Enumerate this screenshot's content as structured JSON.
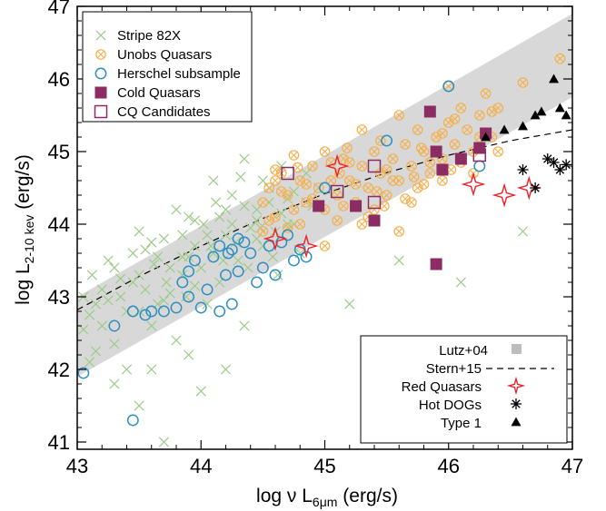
{
  "chart_data": {
    "type": "scatter",
    "title": "",
    "xlabel": {
      "prefix": "log ν L",
      "sub": "6μm",
      "suffix": " (erg/s)"
    },
    "ylabel": {
      "prefix": "log L",
      "sub": "2-10 kev",
      "suffix": " (erg/s)"
    },
    "xlim": [
      43,
      47
    ],
    "ylim": [
      40.9,
      47
    ],
    "xticks": [
      "43",
      "44",
      "45",
      "46",
      "47"
    ],
    "yticks": [
      "41",
      "42",
      "43",
      "44",
      "45",
      "46",
      "47"
    ],
    "xtick_values": [
      43,
      44,
      45,
      46,
      47
    ],
    "ytick_values": [
      41,
      42,
      43,
      44,
      45,
      46,
      47
    ],
    "grid": false,
    "colors": {
      "stripe82x": "#9ecb8a",
      "unobs": "#f5b04d",
      "herschel": "#2e8fc0",
      "cold": "#8b2c63",
      "red": "#e8232b",
      "band": "#d8d8d8",
      "black": "#000000"
    },
    "legend_top_left": [
      {
        "label": "Stripe 82X",
        "marker": "x",
        "color": "#9ecb8a"
      },
      {
        "label": "Unobs Quasars",
        "marker": "circle-x",
        "color": "#f5b04d"
      },
      {
        "label": "Herschel subsample",
        "marker": "circle",
        "color": "#2e8fc0"
      },
      {
        "label": "Cold Quasars",
        "marker": "square-filled",
        "color": "#8b2c63"
      },
      {
        "label": "CQ Candidates",
        "marker": "square-open",
        "color": "#8b2c63"
      }
    ],
    "legend_bottom_right": [
      {
        "label": "Lutz+04",
        "marker": "square-filled",
        "color": "#bdbdbd"
      },
      {
        "label": "Stern+15",
        "marker": "dashed-line",
        "color": "#000000"
      },
      {
        "label": "Red Quasars",
        "marker": "star4",
        "color": "#e8232b"
      },
      {
        "label": "Hot DOGs",
        "marker": "asterisk",
        "color": "#000000"
      },
      {
        "label": "Type 1",
        "marker": "triangle",
        "color": "#000000"
      }
    ],
    "series": [
      {
        "name": "Lutz+04",
        "kind": "band",
        "upper": [
          [
            43,
            43.0
          ],
          [
            47,
            46.9
          ]
        ],
        "lower": [
          [
            43,
            41.9
          ],
          [
            47,
            45.75
          ]
        ]
      },
      {
        "name": "Stern+15",
        "kind": "dashed",
        "x": [
          43,
          43.5,
          44,
          44.5,
          45,
          45.5,
          46,
          46.5,
          47
        ],
        "y": [
          42.82,
          43.28,
          43.7,
          44.08,
          44.42,
          44.71,
          44.95,
          45.15,
          45.3
        ]
      },
      {
        "name": "Stripe 82X",
        "kind": "x",
        "points": [
          [
            43.05,
            42.55
          ],
          [
            43.1,
            42.75
          ],
          [
            43.15,
            42.9
          ],
          [
            43.2,
            43.1
          ],
          [
            43.12,
            43.3
          ],
          [
            43.25,
            43.5
          ],
          [
            43.3,
            42.35
          ],
          [
            43.35,
            43.0
          ],
          [
            43.4,
            42.8
          ],
          [
            43.45,
            43.6
          ],
          [
            43.5,
            43.3
          ],
          [
            43.55,
            43.1
          ],
          [
            43.6,
            42.6
          ],
          [
            43.62,
            43.45
          ],
          [
            43.7,
            43.8
          ],
          [
            43.72,
            43.2
          ],
          [
            43.8,
            42.4
          ],
          [
            43.85,
            43.55
          ],
          [
            43.88,
            43.0
          ],
          [
            43.9,
            44.1
          ],
          [
            43.95,
            43.7
          ],
          [
            44.0,
            43.4
          ],
          [
            44.02,
            44.0
          ],
          [
            44.05,
            42.9
          ],
          [
            44.1,
            43.6
          ],
          [
            44.12,
            44.3
          ],
          [
            44.15,
            43.2
          ],
          [
            44.2,
            43.85
          ],
          [
            44.25,
            44.4
          ],
          [
            44.3,
            43.5
          ],
          [
            44.32,
            44.65
          ],
          [
            44.35,
            42.6
          ],
          [
            44.4,
            43.95
          ],
          [
            44.45,
            44.2
          ],
          [
            44.5,
            43.7
          ],
          [
            44.55,
            44.5
          ],
          [
            44.6,
            43.9
          ],
          [
            44.62,
            43.3
          ],
          [
            44.65,
            44.8
          ],
          [
            44.7,
            44.35
          ],
          [
            44.75,
            44.0
          ],
          [
            44.8,
            43.6
          ],
          [
            44.85,
            44.7
          ],
          [
            44.9,
            44.25
          ],
          [
            44.95,
            44.5
          ],
          [
            43.3,
            41.8
          ],
          [
            43.5,
            41.5
          ],
          [
            43.7,
            41.0
          ],
          [
            43.9,
            42.2
          ],
          [
            44.2,
            42.0
          ],
          [
            44.0,
            41.7
          ],
          [
            43.6,
            42.0
          ],
          [
            43.1,
            42.1
          ],
          [
            43.2,
            42.6
          ],
          [
            43.4,
            42.0
          ],
          [
            43.5,
            43.9
          ],
          [
            43.8,
            44.2
          ],
          [
            44.1,
            44.6
          ],
          [
            44.35,
            44.9
          ],
          [
            44.5,
            44.6
          ],
          [
            43.65,
            42.9
          ],
          [
            43.75,
            43.05
          ],
          [
            43.85,
            43.3
          ],
          [
            43.95,
            43.15
          ],
          [
            44.08,
            43.7
          ],
          [
            44.18,
            43.5
          ],
          [
            44.28,
            43.75
          ],
          [
            44.38,
            43.4
          ],
          [
            44.48,
            43.95
          ],
          [
            44.58,
            43.55
          ],
          [
            43.25,
            42.95
          ],
          [
            43.35,
            43.25
          ],
          [
            43.45,
            43.2
          ],
          [
            43.55,
            43.65
          ],
          [
            43.65,
            43.55
          ],
          [
            43.75,
            43.4
          ],
          [
            43.85,
            43.85
          ],
          [
            43.95,
            44.05
          ],
          [
            44.05,
            43.85
          ],
          [
            44.15,
            44.1
          ],
          [
            44.25,
            44.0
          ],
          [
            44.35,
            44.25
          ],
          [
            44.45,
            44.05
          ],
          [
            44.55,
            44.3
          ],
          [
            44.65,
            44.15
          ],
          [
            44.75,
            44.45
          ],
          [
            44.85,
            44.3
          ],
          [
            45.2,
            42.9
          ],
          [
            45.6,
            43.5
          ],
          [
            46.1,
            43.2
          ],
          [
            46.6,
            43.9
          ],
          [
            43.15,
            42.25
          ],
          [
            43.05,
            43.0
          ],
          [
            43.3,
            43.4
          ],
          [
            43.6,
            43.75
          ],
          [
            43.9,
            43.55
          ],
          [
            44.2,
            44.2
          ],
          [
            44.45,
            43.8
          ],
          [
            44.7,
            44.0
          ],
          [
            43.5,
            42.8
          ],
          [
            43.7,
            42.95
          ]
        ]
      },
      {
        "name": "Unobs Quasars",
        "kind": "circle-x",
        "points": [
          [
            44.5,
            44.3
          ],
          [
            44.55,
            44.5
          ],
          [
            44.6,
            44.1
          ],
          [
            44.65,
            44.7
          ],
          [
            44.7,
            44.4
          ],
          [
            44.75,
            44.2
          ],
          [
            44.8,
            44.6
          ],
          [
            44.85,
            44.3
          ],
          [
            44.9,
            44.8
          ],
          [
            44.95,
            44.5
          ],
          [
            45.0,
            44.2
          ],
          [
            45.05,
            44.6
          ],
          [
            45.1,
            44.4
          ],
          [
            45.15,
            44.9
          ],
          [
            45.2,
            44.6
          ],
          [
            45.25,
            44.3
          ],
          [
            45.3,
            44.8
          ],
          [
            45.35,
            44.5
          ],
          [
            45.4,
            45.0
          ],
          [
            45.45,
            44.7
          ],
          [
            45.5,
            44.4
          ],
          [
            45.55,
            44.9
          ],
          [
            45.6,
            44.6
          ],
          [
            45.65,
            45.1
          ],
          [
            45.7,
            44.8
          ],
          [
            45.75,
            44.5
          ],
          [
            45.8,
            45.0
          ],
          [
            45.85,
            44.7
          ],
          [
            45.9,
            45.2
          ],
          [
            45.95,
            44.9
          ],
          [
            46.0,
            45.4
          ],
          [
            46.05,
            45.1
          ],
          [
            46.1,
            45.6
          ],
          [
            46.15,
            45.3
          ],
          [
            46.2,
            45.0
          ],
          [
            46.25,
            45.5
          ],
          [
            46.3,
            45.8
          ],
          [
            46.35,
            45.2
          ],
          [
            46.4,
            45.6
          ],
          [
            46.6,
            45.95
          ],
          [
            46.9,
            46.28
          ],
          [
            46.0,
            45.9
          ],
          [
            45.6,
            45.5
          ],
          [
            45.3,
            45.3
          ],
          [
            45.0,
            45.0
          ],
          [
            44.75,
            44.95
          ],
          [
            44.6,
            44.75
          ],
          [
            44.5,
            43.9
          ],
          [
            44.8,
            44.0
          ],
          [
            45.1,
            44.05
          ],
          [
            45.4,
            44.2
          ],
          [
            45.7,
            44.3
          ],
          [
            45.95,
            44.6
          ],
          [
            46.2,
            44.7
          ],
          [
            46.4,
            45.0
          ],
          [
            44.65,
            44.45
          ],
          [
            44.9,
            44.35
          ],
          [
            45.2,
            44.85
          ],
          [
            45.5,
            44.75
          ],
          [
            45.8,
            44.55
          ],
          [
            46.1,
            44.85
          ],
          [
            44.55,
            44.05
          ],
          [
            45.05,
            44.85
          ],
          [
            45.35,
            44.1
          ],
          [
            45.65,
            44.35
          ],
          [
            45.95,
            45.25
          ],
          [
            46.25,
            45.2
          ],
          [
            44.7,
            43.95
          ],
          [
            45.15,
            44.25
          ],
          [
            45.45,
            45.15
          ],
          [
            45.75,
            45.3
          ],
          [
            46.05,
            45.45
          ],
          [
            46.35,
            45.55
          ],
          [
            44.85,
            44.55
          ],
          [
            45.25,
            44.55
          ],
          [
            45.55,
            44.6
          ],
          [
            45.85,
            44.85
          ],
          [
            45.0,
            43.7
          ],
          [
            45.3,
            44.0
          ],
          [
            45.6,
            43.9
          ],
          [
            44.6,
            44.6
          ],
          [
            44.95,
            44.25
          ],
          [
            45.12,
            44.7
          ],
          [
            45.42,
            44.45
          ],
          [
            45.72,
            44.65
          ],
          [
            46.02,
            44.75
          ],
          [
            44.78,
            44.78
          ],
          [
            45.18,
            45.05
          ],
          [
            45.48,
            44.25
          ],
          [
            45.78,
            45.05
          ]
        ]
      },
      {
        "name": "Herschel subsample",
        "kind": "circle",
        "points": [
          [
            43.05,
            41.95
          ],
          [
            43.45,
            41.3
          ],
          [
            43.3,
            42.6
          ],
          [
            43.45,
            42.8
          ],
          [
            43.55,
            42.75
          ],
          [
            43.6,
            42.8
          ],
          [
            43.7,
            42.8
          ],
          [
            43.8,
            42.85
          ],
          [
            43.9,
            43.0
          ],
          [
            43.85,
            43.2
          ],
          [
            43.9,
            43.35
          ],
          [
            43.95,
            43.5
          ],
          [
            44.0,
            42.85
          ],
          [
            44.05,
            43.1
          ],
          [
            44.1,
            43.55
          ],
          [
            44.15,
            42.8
          ],
          [
            44.2,
            43.3
          ],
          [
            44.22,
            43.6
          ],
          [
            44.25,
            42.9
          ],
          [
            44.3,
            43.35
          ],
          [
            44.35,
            43.75
          ],
          [
            44.4,
            43.6
          ],
          [
            44.45,
            43.2
          ],
          [
            44.5,
            43.4
          ],
          [
            44.55,
            43.7
          ],
          [
            44.6,
            43.3
          ],
          [
            44.65,
            43.75
          ],
          [
            44.7,
            43.85
          ],
          [
            44.75,
            43.5
          ],
          [
            44.8,
            43.65
          ],
          [
            44.85,
            43.55
          ],
          [
            44.3,
            43.8
          ],
          [
            44.25,
            43.65
          ],
          [
            44.15,
            43.7
          ],
          [
            45.0,
            44.5
          ],
          [
            45.5,
            45.15
          ],
          [
            46.0,
            45.9
          ],
          [
            46.25,
            44.8
          ]
        ]
      },
      {
        "name": "Cold Quasars",
        "kind": "square-filled",
        "points": [
          [
            44.95,
            44.25
          ],
          [
            45.25,
            44.25
          ],
          [
            45.4,
            44.05
          ],
          [
            45.85,
            45.55
          ],
          [
            45.9,
            45.0
          ],
          [
            45.95,
            44.75
          ],
          [
            46.1,
            44.9
          ],
          [
            46.25,
            45.05
          ],
          [
            46.3,
            45.25
          ],
          [
            45.9,
            43.45
          ]
        ]
      },
      {
        "name": "CQ Candidates",
        "kind": "square-open",
        "points": [
          [
            44.7,
            44.7
          ],
          [
            45.1,
            44.45
          ],
          [
            45.4,
            44.8
          ],
          [
            45.4,
            44.3
          ],
          [
            46.25,
            44.95
          ]
        ]
      },
      {
        "name": "Red Quasars",
        "kind": "star4",
        "points": [
          [
            44.6,
            43.8
          ],
          [
            44.85,
            43.7
          ],
          [
            45.1,
            44.8
          ],
          [
            46.2,
            44.55
          ],
          [
            46.45,
            44.4
          ],
          [
            46.65,
            44.5
          ]
        ]
      },
      {
        "name": "Hot DOGs",
        "kind": "asterisk",
        "points": [
          [
            46.6,
            44.75
          ],
          [
            46.7,
            44.5
          ],
          [
            46.8,
            44.9
          ],
          [
            46.9,
            44.75
          ],
          [
            46.95,
            44.82
          ],
          [
            46.85,
            44.85
          ]
        ]
      },
      {
        "name": "Type 1",
        "kind": "triangle",
        "points": [
          [
            46.3,
            45.2
          ],
          [
            46.45,
            45.3
          ],
          [
            46.6,
            45.35
          ],
          [
            46.7,
            45.5
          ],
          [
            46.75,
            45.55
          ],
          [
            46.85,
            46.0
          ],
          [
            46.9,
            45.6
          ],
          [
            46.95,
            45.5
          ]
        ]
      }
    ]
  }
}
